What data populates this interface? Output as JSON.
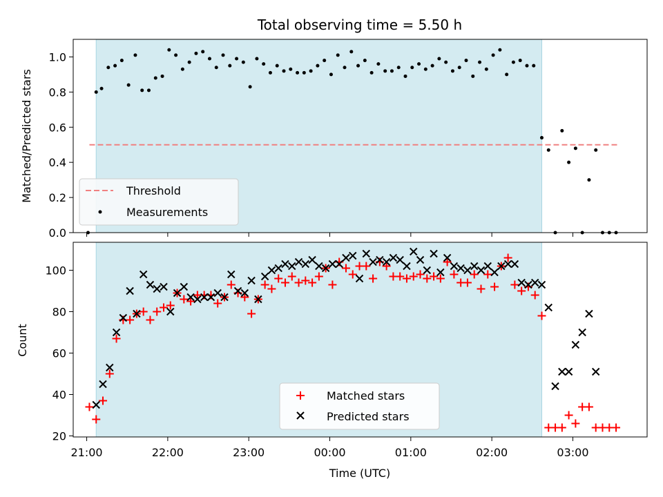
{
  "chart_data": [
    {
      "type": "scatter",
      "title": "Total observing time = 5.50 h",
      "xlabel": "",
      "ylabel": "Matched/Predicted stars",
      "xlim": [
        "20:50",
        "03:55"
      ],
      "ylim": [
        0.0,
        1.1
      ],
      "yticks": [
        "0.0",
        "0.2",
        "0.4",
        "0.6",
        "0.8",
        "1.0"
      ],
      "observing_window": [
        "21:07",
        "02:37"
      ],
      "threshold": {
        "name": "Threshold",
        "value": 0.5,
        "x": [
          "21:02",
          "03:33"
        ],
        "color": "#f08080"
      },
      "series": [
        {
          "name": "Measurements",
          "color": "#000000",
          "x": [
            "21:01",
            "21:07",
            "21:11",
            "21:16",
            "21:21",
            "21:26",
            "21:31",
            "21:36",
            "21:41",
            "21:46",
            "21:51",
            "21:56",
            "22:01",
            "22:06",
            "22:11",
            "22:16",
            "22:21",
            "22:26",
            "22:31",
            "22:36",
            "22:41",
            "22:46",
            "22:51",
            "22:56",
            "23:01",
            "23:06",
            "23:11",
            "23:16",
            "23:21",
            "23:26",
            "23:31",
            "23:36",
            "23:41",
            "23:46",
            "23:51",
            "23:56",
            "00:01",
            "00:06",
            "00:11",
            "00:16",
            "00:21",
            "00:26",
            "00:31",
            "00:36",
            "00:41",
            "00:46",
            "00:51",
            "00:56",
            "01:01",
            "01:06",
            "01:11",
            "01:16",
            "01:21",
            "01:26",
            "01:31",
            "01:36",
            "01:41",
            "01:46",
            "01:51",
            "01:56",
            "02:01",
            "02:06",
            "02:11",
            "02:16",
            "02:21",
            "02:26",
            "02:31",
            "02:37",
            "02:42",
            "02:47",
            "02:52",
            "02:57",
            "03:02",
            "03:07",
            "03:12",
            "03:17",
            "03:22",
            "03:27",
            "03:32"
          ],
          "y": [
            0.0,
            0.8,
            0.82,
            0.94,
            0.95,
            0.98,
            0.84,
            1.01,
            0.81,
            0.81,
            0.88,
            0.89,
            1.04,
            1.01,
            0.93,
            0.97,
            1.02,
            1.03,
            0.99,
            0.94,
            1.01,
            0.95,
            0.99,
            0.97,
            0.83,
            0.99,
            0.96,
            0.91,
            0.95,
            0.92,
            0.93,
            0.91,
            0.91,
            0.92,
            0.95,
            0.98,
            0.9,
            1.01,
            0.94,
            1.03,
            0.95,
            0.98,
            0.91,
            0.96,
            0.92,
            0.92,
            0.94,
            0.89,
            0.94,
            0.96,
            0.93,
            0.95,
            0.99,
            0.97,
            0.92,
            0.94,
            0.98,
            0.89,
            0.97,
            0.93,
            1.01,
            1.04,
            0.9,
            0.97,
            0.98,
            0.95,
            0.95,
            0.54,
            0.47,
            0.0,
            0.58,
            0.4,
            0.48,
            0.0,
            0.3,
            0.47,
            0.0,
            0.0,
            0.0
          ]
        }
      ],
      "legend": {
        "placement": "lower-left",
        "entries": [
          "Threshold",
          "Measurements"
        ]
      },
      "colors": {
        "band": "#d4ebf1",
        "band_edge": "#a9d6e2"
      }
    },
    {
      "type": "scatter",
      "title": "",
      "xlabel": "Time (UTC)",
      "ylabel": "Count",
      "xlim": [
        "20:50",
        "03:55"
      ],
      "ylim": [
        19.5,
        113.5
      ],
      "xticks": [
        "21:00",
        "22:00",
        "23:00",
        "00:00",
        "01:00",
        "02:00",
        "03:00"
      ],
      "yticks": [
        "20",
        "40",
        "60",
        "80",
        "100"
      ],
      "observing_window": [
        "21:07",
        "02:37"
      ],
      "series": [
        {
          "name": "Matched stars",
          "marker": "+",
          "color": "#ff0000",
          "x": [
            "21:02",
            "21:07",
            "21:12",
            "21:17",
            "21:22",
            "21:27",
            "21:32",
            "21:37",
            "21:42",
            "21:47",
            "21:52",
            "21:57",
            "22:02",
            "22:07",
            "22:12",
            "22:17",
            "22:22",
            "22:27",
            "22:32",
            "22:37",
            "22:42",
            "22:47",
            "22:52",
            "22:57",
            "23:02",
            "23:07",
            "23:12",
            "23:17",
            "23:22",
            "23:27",
            "23:32",
            "23:37",
            "23:42",
            "23:47",
            "23:52",
            "23:57",
            "00:02",
            "00:07",
            "00:12",
            "00:17",
            "00:22",
            "00:27",
            "00:32",
            "00:37",
            "00:42",
            "00:47",
            "00:52",
            "00:57",
            "01:02",
            "01:07",
            "01:12",
            "01:17",
            "01:22",
            "01:27",
            "01:32",
            "01:37",
            "01:42",
            "01:47",
            "01:52",
            "01:57",
            "02:02",
            "02:07",
            "02:12",
            "02:17",
            "02:22",
            "02:27",
            "02:32",
            "02:37",
            "02:42",
            "02:47",
            "02:52",
            "02:57",
            "03:02",
            "03:07",
            "03:12",
            "03:17",
            "03:22",
            "03:27",
            "03:32"
          ],
          "y": [
            34,
            28,
            37,
            50,
            67,
            76,
            76,
            79,
            80,
            76,
            80,
            82,
            83,
            89,
            86,
            85,
            88,
            88,
            88,
            84,
            87,
            93,
            89,
            87,
            79,
            86,
            93,
            91,
            96,
            94,
            97,
            94,
            95,
            94,
            97,
            101,
            93,
            104,
            101,
            98,
            102,
            102,
            96,
            104,
            102,
            97,
            97,
            96,
            97,
            98,
            96,
            97,
            96,
            104,
            98,
            94,
            94,
            98,
            91,
            98,
            92,
            102,
            106,
            93,
            90,
            92,
            88,
            78,
            24,
            24,
            24,
            30,
            26,
            34,
            34,
            24,
            24,
            24,
            24
          ]
        },
        {
          "name": "Predicted stars",
          "marker": "x",
          "color": "#000000",
          "x": [
            "21:07",
            "21:12",
            "21:17",
            "21:22",
            "21:27",
            "21:32",
            "21:37",
            "21:42",
            "21:47",
            "21:52",
            "21:57",
            "22:02",
            "22:07",
            "22:12",
            "22:17",
            "22:22",
            "22:27",
            "22:32",
            "22:37",
            "22:42",
            "22:47",
            "22:52",
            "22:57",
            "23:02",
            "23:07",
            "23:12",
            "23:17",
            "23:22",
            "23:27",
            "23:32",
            "23:37",
            "23:42",
            "23:47",
            "23:52",
            "23:57",
            "00:02",
            "00:07",
            "00:12",
            "00:17",
            "00:22",
            "00:27",
            "00:32",
            "00:37",
            "00:42",
            "00:47",
            "00:52",
            "00:57",
            "01:02",
            "01:07",
            "01:12",
            "01:17",
            "01:22",
            "01:27",
            "01:32",
            "01:37",
            "01:42",
            "01:47",
            "01:52",
            "01:57",
            "02:02",
            "02:07",
            "02:12",
            "02:17",
            "02:22",
            "02:27",
            "02:32",
            "02:37",
            "02:42",
            "02:47",
            "02:52",
            "02:57",
            "03:02",
            "03:07",
            "03:12",
            "03:17"
          ],
          "y": [
            35,
            45,
            53,
            70,
            77,
            90,
            79,
            98,
            93,
            91,
            92,
            80,
            89,
            92,
            87,
            86,
            87,
            87,
            89,
            87,
            98,
            90,
            89,
            95,
            86,
            97,
            100,
            101,
            103,
            102,
            104,
            103,
            105,
            102,
            101,
            103,
            103,
            106,
            107,
            96,
            108,
            104,
            105,
            104,
            106,
            105,
            102,
            109,
            105,
            100,
            108,
            99,
            106,
            102,
            101,
            100,
            102,
            100,
            102,
            99,
            102,
            103,
            103,
            94,
            93,
            94,
            93,
            82,
            44,
            51,
            51,
            64,
            70,
            79,
            51
          ]
        }
      ],
      "legend": {
        "placement": "lower-center",
        "entries": [
          "Matched stars",
          "Predicted stars"
        ]
      }
    }
  ]
}
